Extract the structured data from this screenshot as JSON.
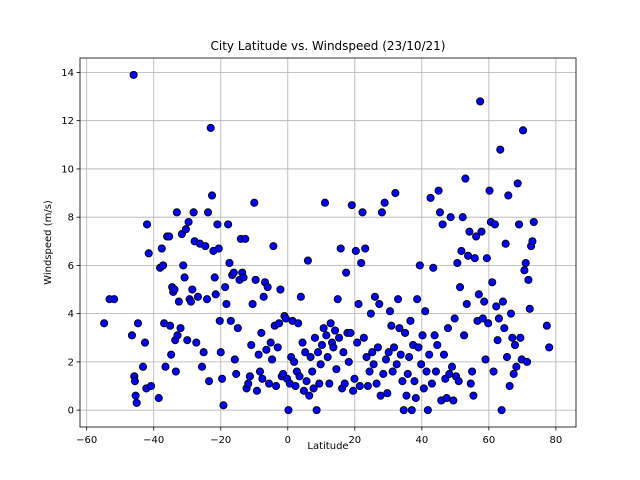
{
  "chart_data": {
    "type": "scatter",
    "title": "City Latitude vs. Windspeed (23/10/21)",
    "xlabel": "Latitude",
    "ylabel": "Windspeed (m/s)",
    "xlim": [
      -62,
      86
    ],
    "ylim": [
      -0.7,
      14.6
    ],
    "xticks": [
      -60,
      -40,
      -20,
      0,
      20,
      40,
      60,
      80
    ],
    "yticks": [
      0,
      2,
      4,
      6,
      8,
      10,
      12,
      14
    ],
    "grid": true,
    "marker": {
      "fill": "#0000ff",
      "edge": "#000000"
    },
    "points": [
      [
        -54.8,
        3.6
      ],
      [
        -53.2,
        4.6
      ],
      [
        -51.8,
        4.6
      ],
      [
        -46.5,
        3.1
      ],
      [
        -46.0,
        13.9
      ],
      [
        -45.8,
        1.4
      ],
      [
        -45.6,
        1.2
      ],
      [
        -45.4,
        0.6
      ],
      [
        -45.1,
        0.3
      ],
      [
        -44.7,
        3.6
      ],
      [
        -43.2,
        1.8
      ],
      [
        -42.6,
        2.8
      ],
      [
        -42.2,
        0.9
      ],
      [
        -42.0,
        7.7
      ],
      [
        -41.5,
        6.5
      ],
      [
        -40.8,
        1.0
      ],
      [
        -38.5,
        0.5
      ],
      [
        -38.1,
        5.9
      ],
      [
        -37.6,
        6.7
      ],
      [
        -37.2,
        6.0
      ],
      [
        -36.9,
        3.6
      ],
      [
        -36.5,
        1.8
      ],
      [
        -36.0,
        7.2
      ],
      [
        -35.4,
        7.2
      ],
      [
        -35.1,
        3.5
      ],
      [
        -34.8,
        2.3
      ],
      [
        -34.5,
        5.1
      ],
      [
        -34.2,
        4.9
      ],
      [
        -33.8,
        5.0
      ],
      [
        -33.6,
        2.9
      ],
      [
        -33.4,
        1.6
      ],
      [
        -33.1,
        8.2
      ],
      [
        -32.9,
        3.1
      ],
      [
        -32.5,
        4.5
      ],
      [
        -32.0,
        3.4
      ],
      [
        -31.6,
        7.3
      ],
      [
        -31.2,
        6.0
      ],
      [
        -30.8,
        5.5
      ],
      [
        -30.4,
        7.5
      ],
      [
        -30.0,
        2.9
      ],
      [
        -29.6,
        7.8
      ],
      [
        -29.3,
        4.6
      ],
      [
        -28.9,
        4.5
      ],
      [
        -28.5,
        5.0
      ],
      [
        -28.1,
        8.2
      ],
      [
        -27.8,
        7.0
      ],
      [
        -27.3,
        2.8
      ],
      [
        -26.8,
        4.7
      ],
      [
        -26.2,
        6.9
      ],
      [
        -25.6,
        1.8
      ],
      [
        -25.1,
        2.4
      ],
      [
        -24.6,
        6.8
      ],
      [
        -24.1,
        4.6
      ],
      [
        -23.8,
        8.2
      ],
      [
        -23.5,
        1.2
      ],
      [
        -23.0,
        11.7
      ],
      [
        -22.6,
        8.9
      ],
      [
        -22.2,
        6.6
      ],
      [
        -21.8,
        5.5
      ],
      [
        -21.5,
        4.8
      ],
      [
        -21.0,
        7.7
      ],
      [
        -20.6,
        6.7
      ],
      [
        -20.3,
        3.7
      ],
      [
        -20.0,
        2.4
      ],
      [
        -19.6,
        1.3
      ],
      [
        -19.2,
        0.2
      ],
      [
        -18.7,
        5.1
      ],
      [
        -18.3,
        4.4
      ],
      [
        -17.8,
        7.7
      ],
      [
        -17.4,
        6.1
      ],
      [
        -17.0,
        3.7
      ],
      [
        -16.6,
        5.6
      ],
      [
        -16.1,
        5.7
      ],
      [
        -15.8,
        2.1
      ],
      [
        -15.4,
        1.5
      ],
      [
        -14.9,
        3.4
      ],
      [
        -14.4,
        5.4
      ],
      [
        -14.0,
        7.1
      ],
      [
        -13.6,
        5.7
      ],
      [
        -13.2,
        5.5
      ],
      [
        -12.7,
        7.1
      ],
      [
        -12.3,
        0.9
      ],
      [
        -11.8,
        1.1
      ],
      [
        -11.3,
        1.4
      ],
      [
        -10.9,
        2.7
      ],
      [
        -10.5,
        4.4
      ],
      [
        -10.0,
        8.6
      ],
      [
        -9.6,
        5.4
      ],
      [
        -9.2,
        0.8
      ],
      [
        -8.7,
        2.3
      ],
      [
        -8.3,
        1.6
      ],
      [
        -7.9,
        3.2
      ],
      [
        -7.6,
        1.3
      ],
      [
        -7.2,
        4.7
      ],
      [
        -6.8,
        5.3
      ],
      [
        -6.4,
        2.5
      ],
      [
        -6.0,
        5.1
      ],
      [
        -5.6,
        1.1
      ],
      [
        -5.1,
        2.8
      ],
      [
        -4.7,
        2.1
      ],
      [
        -4.3,
        6.8
      ],
      [
        -3.9,
        3.5
      ],
      [
        -3.5,
        1.0
      ],
      [
        -3.0,
        2.6
      ],
      [
        -2.6,
        3.6
      ],
      [
        -2.2,
        5.0
      ],
      [
        -1.8,
        1.4
      ],
      [
        -1.4,
        1.5
      ],
      [
        -1.0,
        3.9
      ],
      [
        -0.6,
        3.8
      ],
      [
        -0.2,
        1.3
      ],
      [
        0.2,
        0.0
      ],
      [
        0.6,
        1.1
      ],
      [
        1.0,
        2.2
      ],
      [
        1.4,
        3.7
      ],
      [
        1.9,
        2.0
      ],
      [
        2.3,
        1.0
      ],
      [
        2.7,
        1.6
      ],
      [
        3.1,
        3.6
      ],
      [
        3.5,
        1.4
      ],
      [
        3.9,
        4.7
      ],
      [
        4.4,
        2.8
      ],
      [
        4.8,
        0.8
      ],
      [
        5.2,
        2.4
      ],
      [
        5.6,
        1.2
      ],
      [
        6.0,
        6.2
      ],
      [
        6.4,
        0.6
      ],
      [
        6.8,
        2.2
      ],
      [
        7.3,
        1.6
      ],
      [
        7.7,
        0.9
      ],
      [
        8.1,
        3.0
      ],
      [
        8.6,
        0.0
      ],
      [
        9.0,
        2.4
      ],
      [
        9.4,
        1.1
      ],
      [
        9.8,
        1.9
      ],
      [
        10.2,
        2.7
      ],
      [
        10.7,
        3.4
      ],
      [
        11.1,
        8.6
      ],
      [
        11.5,
        3.1
      ],
      [
        11.9,
        2.2
      ],
      [
        12.4,
        1.1
      ],
      [
        12.8,
        3.6
      ],
      [
        13.2,
        2.8
      ],
      [
        13.6,
        2.6
      ],
      [
        14.1,
        3.3
      ],
      [
        14.5,
        1.7
      ],
      [
        14.9,
        4.6
      ],
      [
        15.3,
        3.0
      ],
      [
        15.8,
        6.7
      ],
      [
        16.2,
        0.9
      ],
      [
        16.6,
        2.4
      ],
      [
        17.0,
        1.1
      ],
      [
        17.4,
        5.7
      ],
      [
        17.8,
        3.2
      ],
      [
        18.2,
        2.0
      ],
      [
        18.7,
        3.2
      ],
      [
        19.1,
        8.5
      ],
      [
        19.5,
        0.8
      ],
      [
        19.9,
        1.3
      ],
      [
        20.3,
        6.6
      ],
      [
        20.7,
        2.8
      ],
      [
        21.1,
        4.4
      ],
      [
        21.5,
        1.0
      ],
      [
        21.9,
        6.1
      ],
      [
        22.3,
        8.2
      ],
      [
        22.7,
        3.0
      ],
      [
        23.1,
        6.7
      ],
      [
        23.5,
        2.2
      ],
      [
        23.9,
        1.0
      ],
      [
        24.4,
        1.6
      ],
      [
        24.8,
        4.0
      ],
      [
        25.2,
        2.4
      ],
      [
        25.6,
        1.9
      ],
      [
        26.0,
        4.7
      ],
      [
        26.5,
        1.1
      ],
      [
        26.9,
        2.6
      ],
      [
        27.3,
        4.4
      ],
      [
        27.7,
        0.6
      ],
      [
        28.1,
        8.2
      ],
      [
        28.5,
        1.5
      ],
      [
        28.9,
        8.6
      ],
      [
        29.3,
        2.1
      ],
      [
        29.7,
        0.7
      ],
      [
        30.1,
        2.4
      ],
      [
        30.5,
        4.1
      ],
      [
        30.9,
        3.5
      ],
      [
        31.3,
        1.6
      ],
      [
        31.7,
        2.6
      ],
      [
        32.1,
        9.0
      ],
      [
        32.5,
        1.9
      ],
      [
        32.9,
        4.6
      ],
      [
        33.3,
        3.4
      ],
      [
        33.7,
        2.3
      ],
      [
        34.2,
        1.2
      ],
      [
        34.6,
        0.0
      ],
      [
        35.0,
        3.2
      ],
      [
        35.4,
        0.6
      ],
      [
        35.8,
        1.5
      ],
      [
        36.2,
        2.2
      ],
      [
        36.6,
        3.7
      ],
      [
        37.0,
        0.0
      ],
      [
        37.4,
        2.7
      ],
      [
        37.8,
        1.2
      ],
      [
        38.2,
        0.5
      ],
      [
        38.6,
        4.6
      ],
      [
        39.0,
        2.6
      ],
      [
        39.4,
        6.0
      ],
      [
        39.8,
        1.9
      ],
      [
        40.2,
        3.1
      ],
      [
        40.6,
        0.9
      ],
      [
        41.0,
        4.1
      ],
      [
        41.4,
        1.6
      ],
      [
        41.8,
        0.0
      ],
      [
        42.2,
        2.3
      ],
      [
        42.6,
        8.8
      ],
      [
        43.0,
        1.1
      ],
      [
        43.4,
        5.9
      ],
      [
        43.8,
        3.1
      ],
      [
        44.2,
        1.6
      ],
      [
        44.6,
        2.7
      ],
      [
        45.0,
        9.1
      ],
      [
        45.4,
        8.2
      ],
      [
        45.8,
        0.4
      ],
      [
        46.2,
        7.7
      ],
      [
        46.6,
        2.3
      ],
      [
        47.0,
        1.3
      ],
      [
        47.4,
        0.5
      ],
      [
        47.8,
        3.4
      ],
      [
        48.2,
        1.5
      ],
      [
        48.6,
        8.0
      ],
      [
        49.0,
        1.8
      ],
      [
        49.4,
        0.4
      ],
      [
        49.8,
        3.8
      ],
      [
        50.2,
        1.4
      ],
      [
        50.6,
        6.1
      ],
      [
        51.0,
        1.2
      ],
      [
        51.4,
        5.1
      ],
      [
        51.8,
        6.6
      ],
      [
        52.2,
        8.0
      ],
      [
        52.6,
        3.1
      ],
      [
        53.0,
        9.6
      ],
      [
        53.4,
        4.4
      ],
      [
        53.8,
        6.4
      ],
      [
        54.2,
        7.4
      ],
      [
        54.6,
        1.1
      ],
      [
        55.0,
        1.6
      ],
      [
        55.4,
        0.6
      ],
      [
        55.8,
        6.3
      ],
      [
        56.2,
        7.2
      ],
      [
        56.6,
        3.7
      ],
      [
        57.0,
        4.8
      ],
      [
        57.4,
        12.8
      ],
      [
        57.8,
        7.4
      ],
      [
        58.2,
        3.8
      ],
      [
        58.6,
        4.5
      ],
      [
        59.0,
        2.1
      ],
      [
        59.4,
        6.3
      ],
      [
        59.8,
        3.6
      ],
      [
        60.2,
        9.1
      ],
      [
        60.6,
        7.8
      ],
      [
        61.0,
        5.3
      ],
      [
        61.4,
        1.6
      ],
      [
        61.8,
        7.7
      ],
      [
        62.2,
        4.3
      ],
      [
        62.6,
        2.9
      ],
      [
        63.0,
        3.8
      ],
      [
        63.4,
        10.8
      ],
      [
        63.8,
        0.0
      ],
      [
        64.2,
        4.5
      ],
      [
        64.6,
        3.4
      ],
      [
        65.0,
        6.9
      ],
      [
        65.4,
        2.2
      ],
      [
        65.8,
        8.9
      ],
      [
        66.2,
        1.0
      ],
      [
        66.6,
        4.0
      ],
      [
        67.0,
        3.0
      ],
      [
        67.4,
        1.5
      ],
      [
        67.8,
        2.7
      ],
      [
        68.2,
        1.8
      ],
      [
        68.6,
        9.4
      ],
      [
        69.0,
        7.7
      ],
      [
        69.4,
        3.0
      ],
      [
        69.8,
        2.1
      ],
      [
        70.2,
        11.6
      ],
      [
        70.6,
        5.8
      ],
      [
        71.0,
        6.1
      ],
      [
        71.4,
        2.0
      ],
      [
        71.8,
        5.4
      ],
      [
        72.2,
        4.2
      ],
      [
        72.6,
        6.8
      ],
      [
        73.0,
        7.0
      ],
      [
        73.4,
        7.8
      ],
      [
        77.3,
        3.5
      ],
      [
        78.0,
        2.6
      ]
    ]
  }
}
